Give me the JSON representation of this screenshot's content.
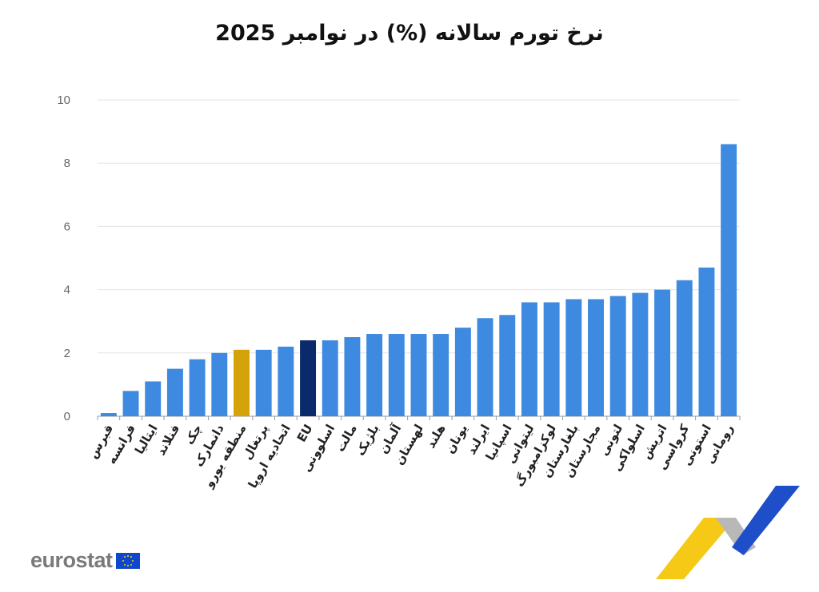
{
  "chart_data": {
    "type": "bar",
    "title": "نرخ تورم سالانه (%) در نوامبر 2025",
    "xlabel": "",
    "ylabel": "",
    "ylim": [
      0,
      10
    ],
    "yticks": [
      0,
      2,
      4,
      6,
      8,
      10
    ],
    "grid": true,
    "categories": [
      "قبرس",
      "فرانسه",
      "ایتالیا",
      "فنلاند",
      "چک",
      "دانمارک",
      "منطقه یورو",
      "پرتغال",
      "اتحادیه اروپا",
      "EU",
      "اسلوونی",
      "مالت",
      "بلژیک",
      "آلمان",
      "لهستان",
      "هلند",
      "یونان",
      "ایرلند",
      "اسپانیا",
      "لیتوانی",
      "لوکزامبورگ",
      "بلغارستان",
      "مجارستان",
      "لتونی",
      "اسلواکی",
      "اتریش",
      "کرواسی",
      "استونی",
      "رومانی"
    ],
    "values": [
      0.1,
      0.8,
      1.1,
      1.5,
      1.8,
      2.0,
      2.1,
      2.1,
      2.2,
      2.4,
      2.4,
      2.5,
      2.6,
      2.6,
      2.6,
      2.6,
      2.8,
      3.1,
      3.2,
      3.6,
      3.6,
      3.7,
      3.7,
      3.8,
      3.9,
      4.0,
      4.3,
      4.7,
      8.6
    ],
    "colors": {
      "default": "#3d8ae0",
      "euro_area": "#d4a20a",
      "eu": "#0b2a6b"
    },
    "highlight": {
      "منطقه یورو": "euro_area",
      "EU": "eu"
    }
  },
  "logo": {
    "text": "eurostat"
  }
}
